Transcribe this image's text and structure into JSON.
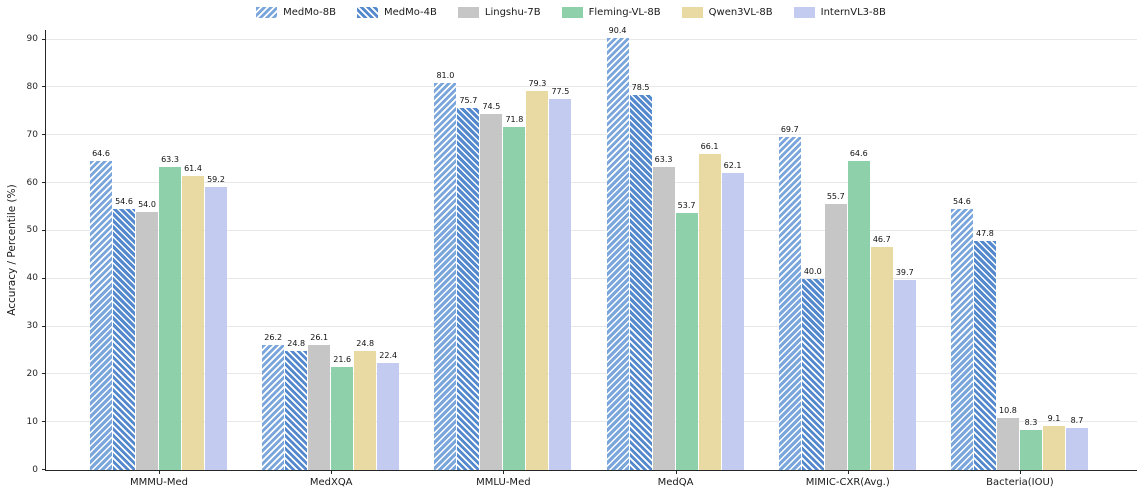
{
  "chart_data": {
    "type": "bar",
    "title": "",
    "xlabel": "",
    "ylabel": "Accuracy / Percentile (%)",
    "ylim": [
      0,
      92
    ],
    "yticks": [
      0,
      10,
      20,
      30,
      40,
      50,
      60,
      70,
      80,
      90
    ],
    "grid": true,
    "legend_position": "top-center",
    "categories": [
      "MMMU-Med",
      "MedXQA",
      "MMLU-Med",
      "MedQA",
      "MIMIC-CXR(Avg.)",
      "Bacteria(IOU)"
    ],
    "series": [
      {
        "name": "MedMo-8B",
        "color": "#7aa6dc",
        "hatch": "/",
        "values": [
          64.6,
          26.2,
          81.0,
          90.4,
          69.7,
          54.6
        ]
      },
      {
        "name": "MedMo-4B",
        "color": "#5589cd",
        "hatch": "\\",
        "values": [
          54.6,
          24.8,
          75.7,
          78.5,
          40.0,
          47.8
        ]
      },
      {
        "name": "Lingshu-7B",
        "color": "#c6c6c6",
        "hatch": "",
        "values": [
          54.0,
          26.1,
          74.5,
          63.3,
          55.7,
          10.8
        ]
      },
      {
        "name": "Fleming-VL-8B",
        "color": "#8ed0a9",
        "hatch": "",
        "values": [
          63.3,
          21.6,
          71.8,
          53.7,
          64.6,
          8.3
        ]
      },
      {
        "name": "Qwen3VL-8B",
        "color": "#e8daa2",
        "hatch": "",
        "values": [
          61.4,
          24.8,
          79.3,
          66.1,
          46.7,
          9.1
        ]
      },
      {
        "name": "InternVL3-8B",
        "color": "#c3cbf0",
        "hatch": "",
        "values": [
          59.2,
          22.4,
          77.5,
          62.1,
          39.7,
          8.7
        ]
      }
    ]
  }
}
